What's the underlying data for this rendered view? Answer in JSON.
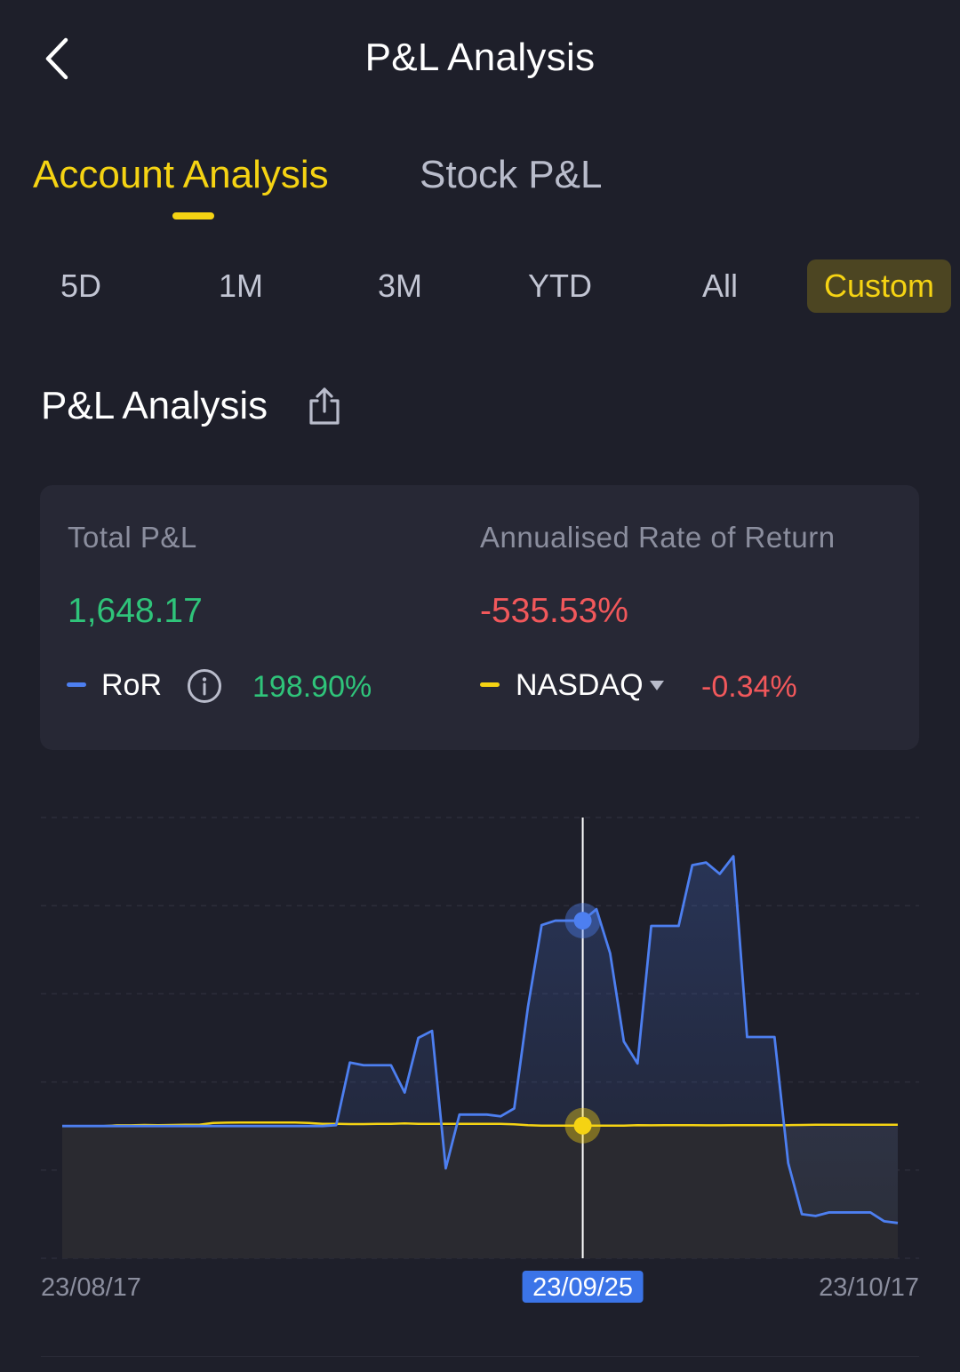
{
  "header": {
    "title": "P&L Analysis",
    "back_icon": "chevron-left-icon"
  },
  "tabs": [
    {
      "label": "Account Analysis",
      "active": true
    },
    {
      "label": "Stock P&L",
      "active": false
    }
  ],
  "periods": [
    {
      "label": "5D",
      "selected": false
    },
    {
      "label": "1M",
      "selected": false
    },
    {
      "label": "3M",
      "selected": false
    },
    {
      "label": "YTD",
      "selected": false
    },
    {
      "label": "All",
      "selected": false
    },
    {
      "label": "Custom",
      "selected": true
    }
  ],
  "section": {
    "title": "P&L Analysis",
    "share_icon": "share-icon"
  },
  "summary": {
    "total_pl_label": "Total P&L",
    "total_pl_value": "1,648.17",
    "annualised_label": "Annualised Rate of Return",
    "annualised_value": "-535.53%",
    "ror_label": "RoR",
    "ror_value": "198.90%",
    "benchmark_label": "NASDAQ",
    "benchmark_value": "-0.34%"
  },
  "colors": {
    "accent": "#f5d313",
    "ror_line": "#4d7ff0",
    "benchmark_line": "#f5d313",
    "positive": "#2fc47a",
    "negative": "#f2585b",
    "background": "#1e1f2a",
    "card": "#272835"
  },
  "chart_data": {
    "type": "line",
    "x_labels": {
      "start": "23/08/17",
      "selected": "23/09/25",
      "end": "23/10/17"
    },
    "selected_index": 38,
    "grid": true,
    "series": [
      {
        "name": "RoR",
        "values": [
          0,
          0,
          0,
          0,
          0,
          0,
          0,
          0,
          0,
          0,
          0,
          0,
          0,
          0,
          0,
          0,
          0,
          0,
          0,
          0,
          1,
          72,
          69,
          69,
          69,
          38,
          100,
          108,
          -48,
          13,
          13,
          13,
          11,
          20,
          135,
          228,
          233,
          233,
          233,
          246,
          196,
          96,
          71,
          227,
          227,
          227,
          296,
          299,
          286,
          306,
          101,
          101,
          101,
          -42,
          -100,
          -102,
          -98,
          -98,
          -98,
          -98,
          -108,
          -110
        ],
        "ylim": [
          -150,
          350
        ]
      },
      {
        "name": "NASDAQ",
        "values": [
          0,
          0,
          0,
          0,
          0.8,
          0.8,
          1.2,
          1.0,
          1.2,
          1.5,
          1.5,
          3.5,
          3.8,
          4.0,
          4.0,
          4.0,
          4.0,
          4.0,
          3.5,
          2.5,
          2.5,
          2.2,
          2.2,
          2.5,
          2.5,
          3.0,
          2.5,
          2.5,
          2.5,
          2.5,
          2.5,
          2.5,
          2.5,
          2.0,
          1.0,
          0.5,
          0.5,
          0.5,
          0.5,
          0.5,
          0.5,
          0.5,
          1.0,
          0.8,
          1.0,
          1.0,
          1.0,
          0.8,
          0.8,
          1.0,
          1.0,
          1.0,
          1.0,
          1.0,
          1.2,
          1.5,
          1.5,
          1.5,
          1.5,
          1.5,
          1.5,
          1.5
        ],
        "ylim": [
          -150,
          350
        ]
      }
    ]
  }
}
